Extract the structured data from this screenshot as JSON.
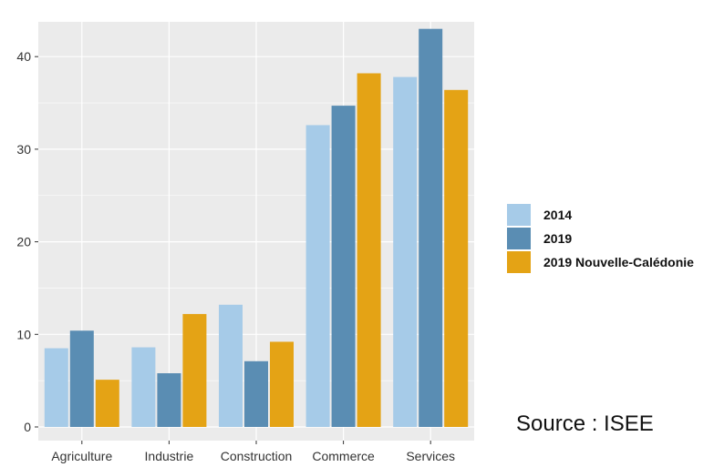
{
  "source_note": "Source : ISEE",
  "colors": {
    "panel_bg": "#ebebeb",
    "grid": "#ffffff",
    "series": [
      "#a6cbe8",
      "#5a8db3",
      "#e4a315"
    ]
  },
  "chart_data": {
    "type": "bar",
    "title": "",
    "xlabel": "",
    "ylabel": "",
    "categories": [
      "Agriculture",
      "Industrie",
      "Construction",
      "Commerce",
      "Services"
    ],
    "series": [
      {
        "name": "2014",
        "values": [
          8.5,
          8.6,
          13.2,
          32.6,
          37.8
        ]
      },
      {
        "name": "2019",
        "values": [
          10.4,
          5.8,
          7.1,
          34.7,
          43.0
        ]
      },
      {
        "name": "2019 Nouvelle-Calédonie",
        "values": [
          5.1,
          12.2,
          9.2,
          38.2,
          36.4
        ]
      }
    ],
    "ylim": [
      0,
      44
    ],
    "yticks": [
      0,
      10,
      20,
      30,
      40
    ],
    "grid": true,
    "legend_position": "right"
  }
}
